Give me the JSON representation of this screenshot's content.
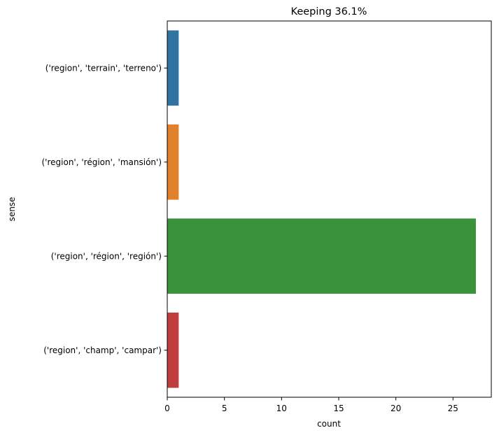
{
  "chart_data": {
    "type": "bar",
    "orientation": "horizontal",
    "title": "Keeping 36.1%",
    "xlabel": "count",
    "ylabel": "sense",
    "categories": [
      "('region', 'terrain', 'terreno')",
      "('region', 'région', 'mansión')",
      "('region', 'région', 'región')",
      "('region', 'champ', 'campar')"
    ],
    "values": [
      1,
      1,
      27,
      1
    ],
    "colors": [
      "#3274a1",
      "#e1812c",
      "#3a923a",
      "#c03d3e"
    ],
    "xlim": [
      0,
      28.35
    ],
    "xticks": [
      0,
      5,
      10,
      15,
      20,
      25
    ],
    "grid": false,
    "legend": "none"
  }
}
